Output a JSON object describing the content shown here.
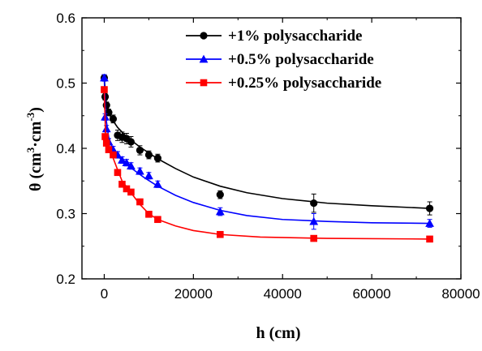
{
  "chart_data": {
    "type": "scatter",
    "xlabel": "h (cm)",
    "ylabel_parts": {
      "symbol": "θ",
      "open": " (cm",
      "sup1": "3",
      "dot": "·cm",
      "sup2": "-3",
      "close": ")"
    },
    "xlim": [
      -5000,
      80000
    ],
    "ylim": [
      0.2,
      0.6
    ],
    "xticks": [
      0,
      20000,
      40000,
      60000,
      80000
    ],
    "xtick_labels": [
      "0",
      "20000",
      "40000",
      "60000",
      "80000"
    ],
    "yticks": [
      0.2,
      0.3,
      0.4,
      0.5,
      0.6
    ],
    "ytick_labels": [
      "0.2",
      "0.3",
      "0.4",
      "0.5",
      "0.6"
    ],
    "grid": false,
    "legend_position": "top-right",
    "series": [
      {
        "name": "+1% polysaccharide",
        "color": "#000000",
        "marker": "circle",
        "x": [
          0,
          200,
          500,
          1000,
          2000,
          3000,
          4000,
          5000,
          6000,
          8000,
          10000,
          12000,
          26000,
          47000,
          73000
        ],
        "y": [
          0.508,
          0.479,
          0.466,
          0.455,
          0.445,
          0.42,
          0.417,
          0.415,
          0.41,
          0.397,
          0.39,
          0.385,
          0.329,
          0.316,
          0.308
        ],
        "errors": [
          0.005,
          0.005,
          0.005,
          0.005,
          0.006,
          0.008,
          0.008,
          0.008,
          0.008,
          0.007,
          0.006,
          0.006,
          0.006,
          0.014,
          0.01
        ],
        "fit": [
          [
            0,
            0.508
          ],
          [
            500,
            0.465
          ],
          [
            1500,
            0.447
          ],
          [
            3000,
            0.432
          ],
          [
            5000,
            0.418
          ],
          [
            8000,
            0.402
          ],
          [
            12000,
            0.384
          ],
          [
            16000,
            0.369
          ],
          [
            20000,
            0.356
          ],
          [
            26000,
            0.342
          ],
          [
            32000,
            0.332
          ],
          [
            40000,
            0.323
          ],
          [
            50000,
            0.316
          ],
          [
            60000,
            0.312
          ],
          [
            73000,
            0.308
          ]
        ]
      },
      {
        "name": "+0.5% polysaccharide",
        "color": "#0000ff",
        "marker": "triangle",
        "x": [
          0,
          200,
          500,
          1000,
          2000,
          3000,
          4000,
          5000,
          6000,
          8000,
          10000,
          12000,
          26000,
          47000,
          73000
        ],
        "y": [
          0.508,
          0.448,
          0.43,
          0.41,
          0.398,
          0.39,
          0.382,
          0.378,
          0.373,
          0.365,
          0.358,
          0.345,
          0.303,
          0.288,
          0.285
        ],
        "errors": [
          0.005,
          0.005,
          0.005,
          0.005,
          0.005,
          0.005,
          0.005,
          0.005,
          0.005,
          0.005,
          0.005,
          0.005,
          0.006,
          0.012,
          0.006
        ],
        "fit": [
          [
            0,
            0.508
          ],
          [
            300,
            0.45
          ],
          [
            1000,
            0.417
          ],
          [
            2000,
            0.398
          ],
          [
            4000,
            0.381
          ],
          [
            6000,
            0.37
          ],
          [
            9000,
            0.355
          ],
          [
            12000,
            0.342
          ],
          [
            16000,
            0.328
          ],
          [
            20000,
            0.317
          ],
          [
            26000,
            0.305
          ],
          [
            32000,
            0.297
          ],
          [
            40000,
            0.291
          ],
          [
            50000,
            0.288
          ],
          [
            60000,
            0.286
          ],
          [
            73000,
            0.285
          ]
        ]
      },
      {
        "name": "+0.25% polysaccharide",
        "color": "#ff0000",
        "marker": "square",
        "x": [
          0,
          200,
          500,
          1000,
          2000,
          3000,
          4000,
          5000,
          6000,
          8000,
          10000,
          12000,
          26000,
          47000,
          73000
        ],
        "y": [
          0.49,
          0.418,
          0.408,
          0.398,
          0.39,
          0.363,
          0.345,
          0.338,
          0.333,
          0.318,
          0.299,
          0.291,
          0.268,
          0.262,
          0.261
        ],
        "errors": [
          0.004,
          0.004,
          0.004,
          0.004,
          0.004,
          0.004,
          0.004,
          0.004,
          0.004,
          0.004,
          0.004,
          0.004,
          0.004,
          0.004,
          0.004
        ],
        "fit": [
          [
            0,
            0.49
          ],
          [
            300,
            0.42
          ],
          [
            1000,
            0.398
          ],
          [
            2000,
            0.385
          ],
          [
            3000,
            0.367
          ],
          [
            4000,
            0.35
          ],
          [
            6000,
            0.332
          ],
          [
            8000,
            0.314
          ],
          [
            10000,
            0.3
          ],
          [
            12000,
            0.291
          ],
          [
            16000,
            0.281
          ],
          [
            20000,
            0.274
          ],
          [
            26000,
            0.268
          ],
          [
            35000,
            0.264
          ],
          [
            50000,
            0.262
          ],
          [
            73000,
            0.261
          ]
        ]
      }
    ]
  }
}
